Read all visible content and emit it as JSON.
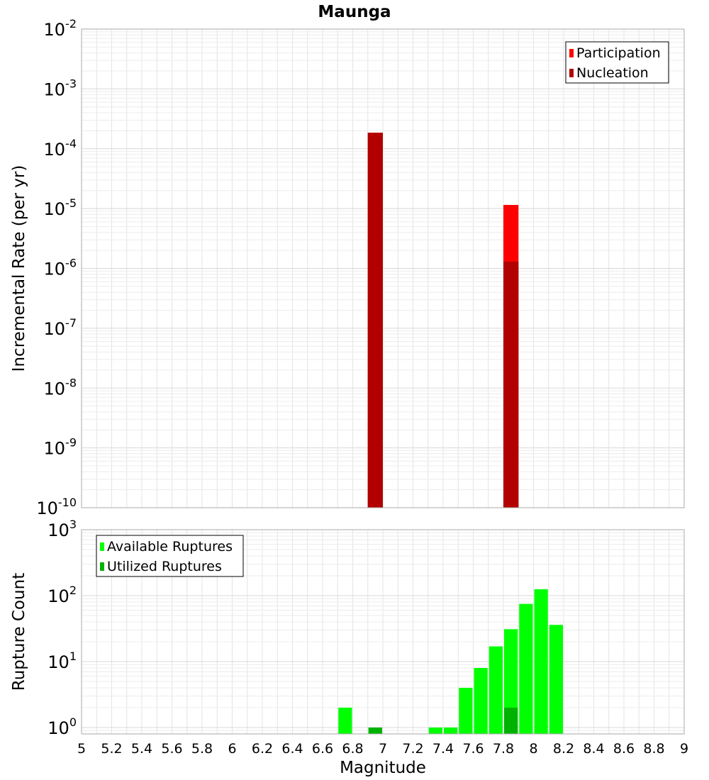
{
  "chart_data": [
    {
      "type": "bar",
      "title": "Maunga",
      "xlabel": "",
      "ylabel": "Incremental Rate (per yr)",
      "xlim": [
        5,
        9
      ],
      "ylim": [
        1e-10,
        0.01
      ],
      "yscale": "log",
      "grid": true,
      "legend_position": "top-right",
      "bar_width": 0.1,
      "series": [
        {
          "name": "Participation",
          "color": "#ff0000",
          "x": [
            6.95,
            7.85
          ],
          "values": [
            0.000185,
            1.15e-05
          ]
        },
        {
          "name": "Nucleation",
          "color": "#b20000",
          "x": [
            6.95,
            7.85
          ],
          "values": [
            0.000185,
            1.3e-06
          ]
        }
      ],
      "yticks": [
        {
          "base": "10",
          "exp": "-10",
          "value": 1e-10
        },
        {
          "base": "10",
          "exp": "-9",
          "value": 1e-09
        },
        {
          "base": "10",
          "exp": "-8",
          "value": 1e-08
        },
        {
          "base": "10",
          "exp": "-7",
          "value": 1e-07
        },
        {
          "base": "10",
          "exp": "-6",
          "value": 1e-06
        },
        {
          "base": "10",
          "exp": "-5",
          "value": 1e-05
        },
        {
          "base": "10",
          "exp": "-4",
          "value": 0.0001
        },
        {
          "base": "10",
          "exp": "-3",
          "value": 0.001
        },
        {
          "base": "10",
          "exp": "-2",
          "value": 0.01
        }
      ]
    },
    {
      "type": "bar",
      "title": "",
      "xlabel": "Magnitude",
      "ylabel": "Rupture Count",
      "xlim": [
        5,
        9
      ],
      "ylim": [
        0.8,
        1000
      ],
      "yscale": "log",
      "grid": true,
      "legend_position": "top-left",
      "bar_width": 0.1,
      "series": [
        {
          "name": "Available Ruptures",
          "color": "#00ff00",
          "x": [
            6.75,
            6.95,
            7.35,
            7.45,
            7.55,
            7.65,
            7.75,
            7.85,
            7.95,
            8.05,
            8.15
          ],
          "values": [
            2,
            1,
            1,
            1,
            4,
            8,
            17,
            31,
            75,
            125,
            36
          ]
        },
        {
          "name": "Utilized Ruptures",
          "color": "#00b200",
          "x": [
            6.95,
            7.85
          ],
          "values": [
            1,
            2
          ]
        }
      ],
      "yticks": [
        {
          "base": "10",
          "exp": "0",
          "value": 1
        },
        {
          "base": "10",
          "exp": "1",
          "value": 10
        },
        {
          "base": "10",
          "exp": "2",
          "value": 100
        },
        {
          "base": "10",
          "exp": "3",
          "value": 1000
        }
      ],
      "xticks": [
        "5",
        "5.2",
        "5.4",
        "5.6",
        "5.8",
        "6",
        "6.2",
        "6.4",
        "6.6",
        "6.8",
        "7",
        "7.2",
        "7.4",
        "7.6",
        "7.8",
        "8",
        "8.2",
        "8.4",
        "8.6",
        "8.8",
        "9"
      ]
    }
  ]
}
